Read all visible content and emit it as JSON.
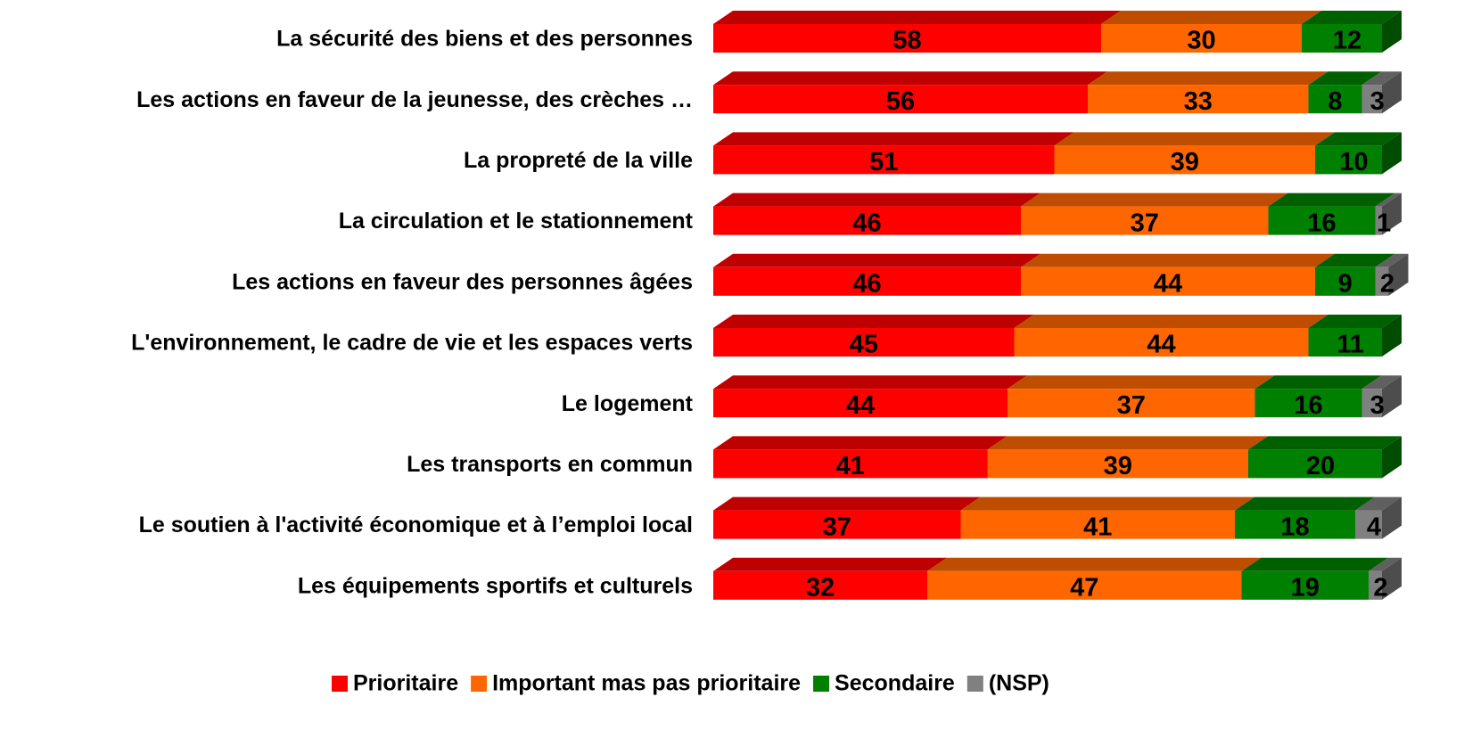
{
  "chart_data": {
    "type": "bar3d_stacked_horizontal",
    "categories": [
      "La sécurité des biens et des personnes",
      "Les actions en faveur de la jeunesse, des crèches …",
      "La propreté de la ville",
      "La circulation et le stationnement",
      "Les actions en faveur des personnes âgées",
      "L'environnement, le cadre de vie et les espaces verts",
      "Le logement",
      "Les transports en commun",
      "Le soutien à l'activité économique et à l’emploi local",
      "Les équipements sportifs et culturels"
    ],
    "series": [
      {
        "name": "Prioritaire",
        "color": "#ff0000",
        "values": [
          58,
          56,
          51,
          46,
          46,
          45,
          44,
          41,
          37,
          32
        ]
      },
      {
        "name": "Important mas pas prioritaire",
        "color": "#ff6600",
        "values": [
          30,
          33,
          39,
          37,
          44,
          44,
          37,
          39,
          41,
          47
        ]
      },
      {
        "name": "Secondaire",
        "color": "#008000",
        "values": [
          12,
          8,
          10,
          16,
          9,
          11,
          16,
          20,
          18,
          19
        ]
      },
      {
        "name": "(NSP)",
        "color": "#808080",
        "values": [
          null,
          3,
          null,
          1,
          2,
          null,
          3,
          null,
          4,
          2
        ]
      }
    ],
    "xlim": [
      0,
      100
    ],
    "legend": "bottom"
  }
}
